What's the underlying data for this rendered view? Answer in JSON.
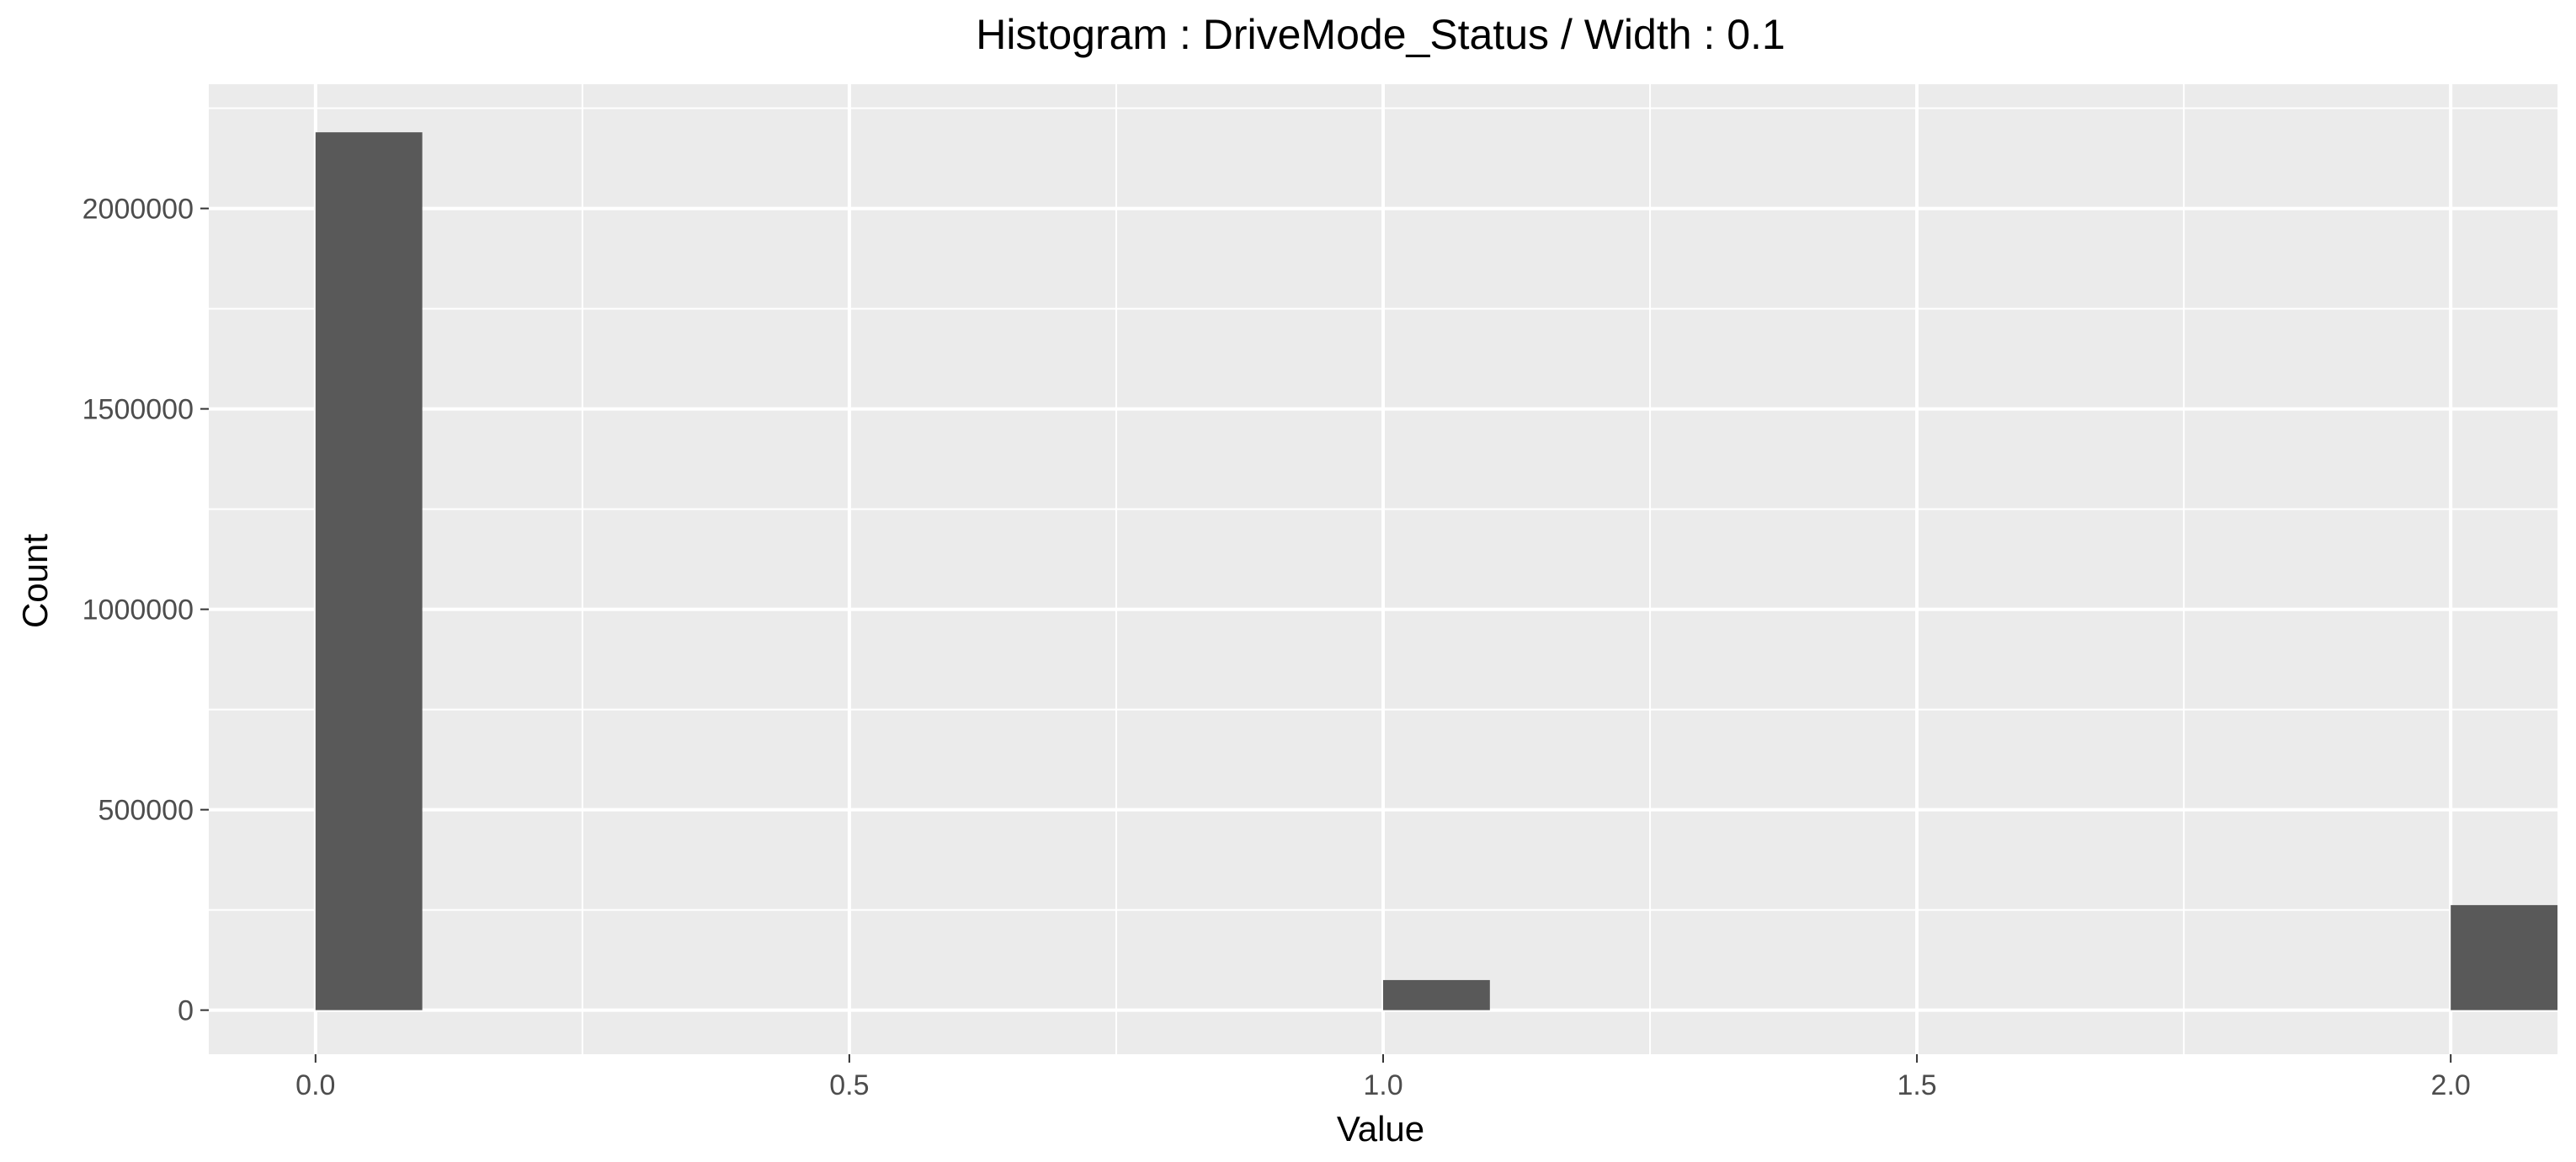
{
  "chart_data": {
    "type": "bar",
    "title": "Histogram : DriveMode_Status / Width : 0.1",
    "xlabel": "Value",
    "ylabel": "Count",
    "bin_width": 0.1,
    "bins": [
      {
        "x": 0.0,
        "count": 2190000
      },
      {
        "x": 1.0,
        "count": 75000
      },
      {
        "x": 2.0,
        "count": 262000
      }
    ],
    "xlim": [
      -0.1,
      2.1
    ],
    "ylim": [
      -110000,
      2310000
    ],
    "x_ticks": [
      {
        "value": 0.0,
        "label": "0.0"
      },
      {
        "value": 0.5,
        "label": "0.5"
      },
      {
        "value": 1.0,
        "label": "1.0"
      },
      {
        "value": 1.5,
        "label": "1.5"
      },
      {
        "value": 2.0,
        "label": "2.0"
      }
    ],
    "y_ticks": [
      {
        "value": 0,
        "label": "0"
      },
      {
        "value": 500000,
        "label": "500000"
      },
      {
        "value": 1000000,
        "label": "1000000"
      },
      {
        "value": 1500000,
        "label": "1500000"
      },
      {
        "value": 2000000,
        "label": "2000000"
      }
    ],
    "grid": true,
    "colors": {
      "panel_background": "#EBEBEB",
      "grid_line": "#FFFFFF",
      "bar_fill": "#595959",
      "tick_mark": "#333333"
    }
  }
}
